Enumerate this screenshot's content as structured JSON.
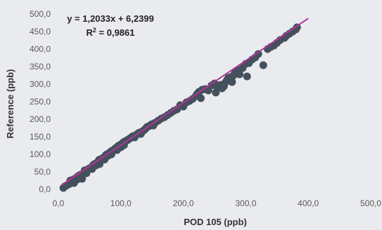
{
  "chart_data": {
    "type": "scatter",
    "xlabel": "POD 105 (ppb)",
    "ylabel": "Reference (ppb)",
    "xlim": [
      0,
      500
    ],
    "ylim": [
      0,
      500
    ],
    "x_ticks": [
      "0,0",
      "100,0",
      "200,0",
      "300,0",
      "400,0",
      "500,0"
    ],
    "y_ticks": [
      "0,0",
      "50,0",
      "100,0",
      "150,0",
      "200,0",
      "250,0",
      "300,0",
      "350,0",
      "400,0",
      "450,0",
      "500,0"
    ],
    "annotations": {
      "equation": "y = 1,2033x + 6,2399",
      "r_squared_label": "R",
      "r_squared_exp": "2",
      "r_squared_value": " = 0,9861"
    },
    "trendline": {
      "slope": 1.2033,
      "intercept": 6.2399,
      "x_range": [
        5,
        400
      ]
    },
    "grid": false,
    "legend": "none",
    "colors": {
      "points": "#44505b",
      "trendline": "#b2359c",
      "background": "#e9ebee"
    },
    "points": [
      [
        8,
        4
      ],
      [
        10,
        8
      ],
      [
        12,
        10
      ],
      [
        14,
        12
      ],
      [
        16,
        14
      ],
      [
        18,
        16
      ],
      [
        19,
        25
      ],
      [
        20,
        22
      ],
      [
        22,
        20
      ],
      [
        24,
        28
      ],
      [
        25,
        18
      ],
      [
        27,
        30
      ],
      [
        28,
        32
      ],
      [
        30,
        35
      ],
      [
        30,
        28
      ],
      [
        32,
        38
      ],
      [
        34,
        40
      ],
      [
        35,
        36
      ],
      [
        36,
        42
      ],
      [
        38,
        30
      ],
      [
        40,
        45
      ],
      [
        42,
        48
      ],
      [
        42,
        54
      ],
      [
        44,
        50
      ],
      [
        45,
        46
      ],
      [
        46,
        55
      ],
      [
        48,
        58
      ],
      [
        50,
        60
      ],
      [
        52,
        62
      ],
      [
        54,
        58
      ],
      [
        55,
        66
      ],
      [
        56,
        70
      ],
      [
        58,
        72
      ],
      [
        60,
        74
      ],
      [
        60,
        68
      ],
      [
        62,
        76
      ],
      [
        64,
        80
      ],
      [
        65,
        84
      ],
      [
        66,
        72
      ],
      [
        68,
        86
      ],
      [
        70,
        88
      ],
      [
        72,
        90
      ],
      [
        74,
        85
      ],
      [
        75,
        94
      ],
      [
        76,
        98
      ],
      [
        78,
        100
      ],
      [
        80,
        102
      ],
      [
        80,
        96
      ],
      [
        82,
        104
      ],
      [
        84,
        108
      ],
      [
        85,
        100
      ],
      [
        86,
        110
      ],
      [
        88,
        112
      ],
      [
        90,
        115
      ],
      [
        92,
        118
      ],
      [
        94,
        112
      ],
      [
        95,
        120
      ],
      [
        96,
        124
      ],
      [
        98,
        126
      ],
      [
        100,
        128
      ],
      [
        100,
        120
      ],
      [
        102,
        130
      ],
      [
        104,
        134
      ],
      [
        105,
        126
      ],
      [
        106,
        136
      ],
      [
        108,
        138
      ],
      [
        110,
        140
      ],
      [
        112,
        142
      ],
      [
        115,
        146
      ],
      [
        118,
        150
      ],
      [
        120,
        152
      ],
      [
        122,
        148
      ],
      [
        125,
        156
      ],
      [
        128,
        160
      ],
      [
        130,
        162
      ],
      [
        132,
        158
      ],
      [
        135,
        166
      ],
      [
        138,
        170
      ],
      [
        140,
        174
      ],
      [
        142,
        178
      ],
      [
        145,
        180
      ],
      [
        148,
        184
      ],
      [
        150,
        186
      ],
      [
        152,
        182
      ],
      [
        155,
        190
      ],
      [
        160,
        196
      ],
      [
        165,
        202
      ],
      [
        170,
        206
      ],
      [
        175,
        212
      ],
      [
        180,
        218
      ],
      [
        185,
        224
      ],
      [
        190,
        228
      ],
      [
        195,
        240
      ],
      [
        200,
        236
      ],
      [
        205,
        248
      ],
      [
        210,
        252
      ],
      [
        215,
        258
      ],
      [
        220,
        266
      ],
      [
        222,
        272
      ],
      [
        225,
        278
      ],
      [
        228,
        260
      ],
      [
        230,
        284
      ],
      [
        235,
        286
      ],
      [
        240,
        282
      ],
      [
        245,
        296
      ],
      [
        250,
        302
      ],
      [
        252,
        276
      ],
      [
        255,
        290
      ],
      [
        260,
        298
      ],
      [
        262,
        288
      ],
      [
        265,
        294
      ],
      [
        268,
        306
      ],
      [
        270,
        312
      ],
      [
        272,
        318
      ],
      [
        275,
        320
      ],
      [
        278,
        306
      ],
      [
        280,
        324
      ],
      [
        282,
        330
      ],
      [
        285,
        336
      ],
      [
        288,
        340
      ],
      [
        290,
        328
      ],
      [
        295,
        346
      ],
      [
        300,
        358
      ],
      [
        302,
        322
      ],
      [
        305,
        360
      ],
      [
        310,
        370
      ],
      [
        315,
        376
      ],
      [
        320,
        386
      ],
      [
        328,
        354
      ],
      [
        335,
        400
      ],
      [
        340,
        406
      ],
      [
        345,
        410
      ],
      [
        350,
        418
      ],
      [
        355,
        426
      ],
      [
        362,
        432
      ],
      [
        370,
        444
      ],
      [
        375,
        450
      ],
      [
        380,
        456
      ],
      [
        382,
        462
      ],
      [
        365,
        438
      ]
    ]
  }
}
